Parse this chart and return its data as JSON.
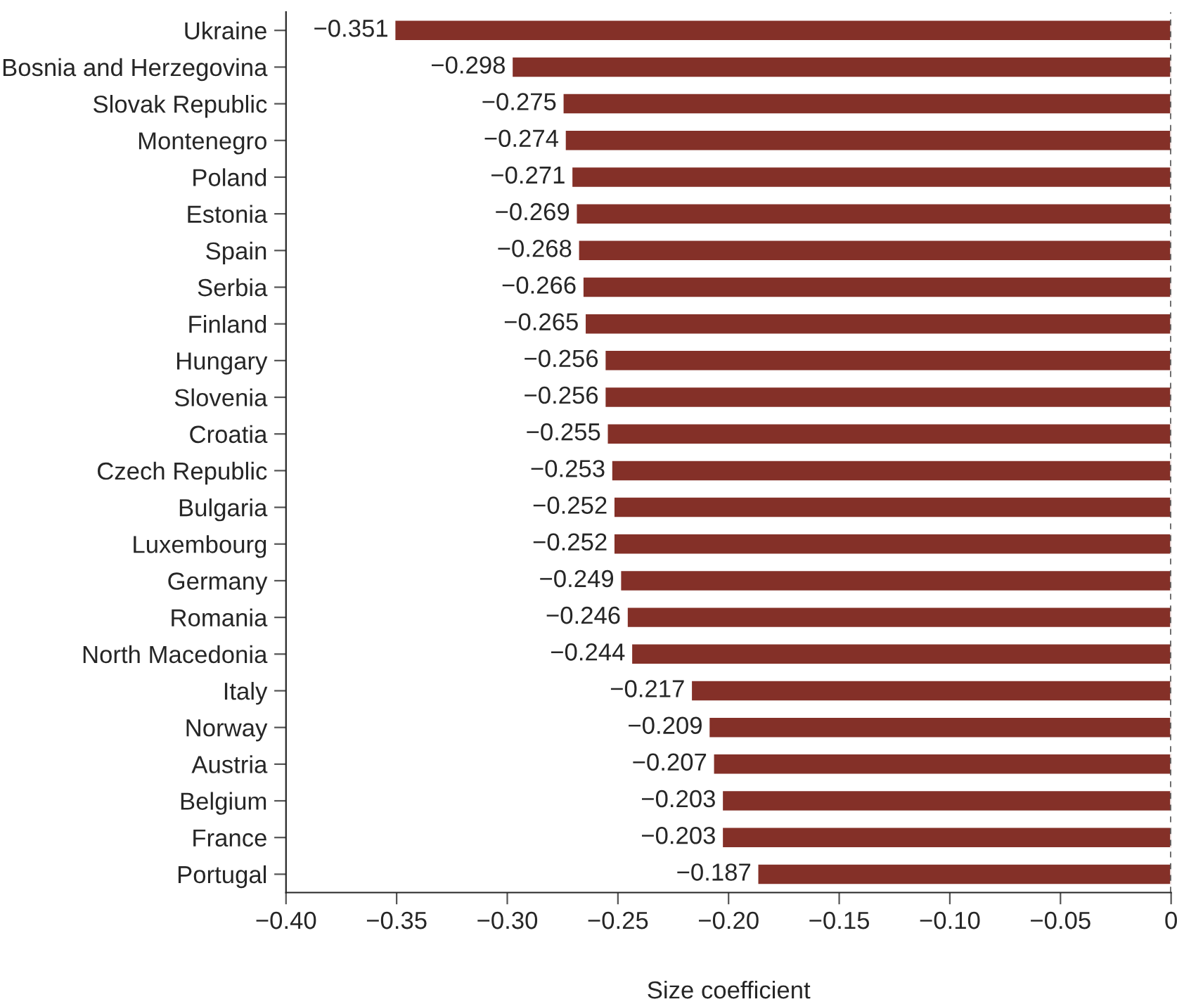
{
  "chart_data": {
    "type": "bar",
    "orientation": "horizontal",
    "xlabel": "Size coefficient",
    "categories": [
      "Ukraine",
      "Bosnia and Herzegovina",
      "Slovak Republic",
      "Montenegro",
      "Poland",
      "Estonia",
      "Spain",
      "Serbia",
      "Finland",
      "Hungary",
      "Slovenia",
      "Croatia",
      "Czech Republic",
      "Bulgaria",
      "Luxembourg",
      "Germany",
      "Romania",
      "North Macedonia",
      "Italy",
      "Norway",
      "Austria",
      "Belgium",
      "France",
      "Portugal"
    ],
    "values": [
      -0.351,
      -0.298,
      -0.275,
      -0.274,
      -0.271,
      -0.269,
      -0.268,
      -0.266,
      -0.265,
      -0.256,
      -0.256,
      -0.255,
      -0.253,
      -0.252,
      -0.252,
      -0.249,
      -0.246,
      -0.244,
      -0.217,
      -0.209,
      -0.207,
      -0.203,
      -0.203,
      -0.187
    ],
    "value_labels": [
      "−0.351",
      "−0.298",
      "−0.275",
      "−0.274",
      "−0.271",
      "−0.269",
      "−0.268",
      "−0.266",
      "−0.265",
      "−0.256",
      "−0.256",
      "−0.255",
      "−0.253",
      "−0.252",
      "−0.252",
      "−0.249",
      "−0.246",
      "−0.244",
      "−0.217",
      "−0.209",
      "−0.207",
      "−0.203",
      "−0.203",
      "−0.187"
    ],
    "color": "#843028",
    "xlim": [
      -0.4,
      0
    ],
    "xticks": [
      {
        "value": -0.4,
        "label": "−0.40"
      },
      {
        "value": -0.35,
        "label": "−0.35"
      },
      {
        "value": -0.3,
        "label": "−0.30"
      },
      {
        "value": -0.25,
        "label": "−0.25"
      },
      {
        "value": -0.2,
        "label": "−0.20"
      },
      {
        "value": -0.15,
        "label": "−0.15"
      },
      {
        "value": -0.1,
        "label": "−0.10"
      },
      {
        "value": -0.05,
        "label": "−0.05"
      },
      {
        "value": 0,
        "label": "0"
      }
    ],
    "ref_lines": [
      {
        "axis": "x",
        "value": 0,
        "label": null,
        "color": "#333333",
        "line_style": "dashed"
      }
    ],
    "grid": false,
    "legend": false
  }
}
